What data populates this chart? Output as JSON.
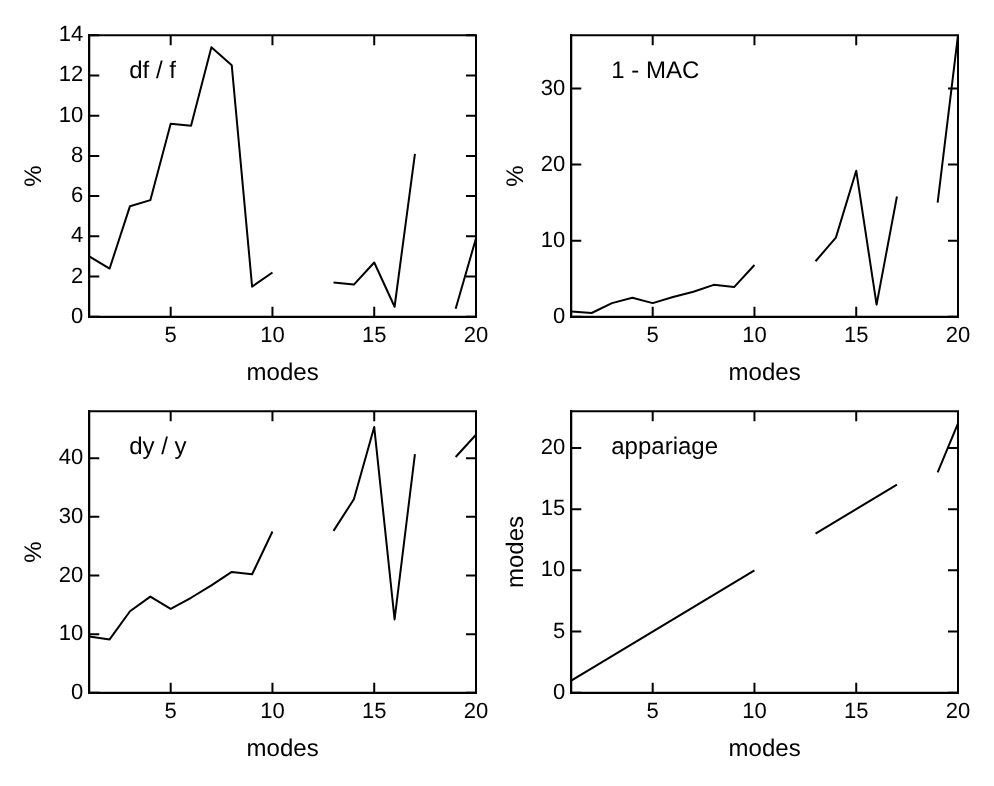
{
  "chart_data": [
    {
      "type": "line",
      "annotations": [
        "df / f"
      ],
      "xlabel": "modes",
      "ylabel": "%",
      "x": [
        1,
        2,
        3,
        4,
        5,
        6,
        7,
        8,
        9,
        10,
        11,
        12,
        13,
        14,
        15,
        16,
        17,
        18,
        19,
        20
      ],
      "series": [
        {
          "color": "#000000",
          "values": [
            3.0,
            2.4,
            5.5,
            5.8,
            9.6,
            9.5,
            13.4,
            12.5,
            1.5,
            2.2,
            null,
            null,
            1.7,
            1.6,
            2.7,
            0.5,
            8.1,
            null,
            0.4,
            3.9
          ]
        }
      ],
      "xlim": [
        1,
        20
      ],
      "xticks": [
        5,
        10,
        15,
        20
      ],
      "ylim": [
        0,
        14
      ],
      "yticks": [
        0,
        2,
        4,
        6,
        8,
        10,
        12,
        14
      ],
      "grid": false,
      "legend": false,
      "marker": "none",
      "line_style": "solid"
    },
    {
      "type": "line",
      "annotations": [
        "1 - MAC"
      ],
      "xlabel": "modes",
      "ylabel": "%",
      "x": [
        1,
        2,
        3,
        4,
        5,
        6,
        7,
        8,
        9,
        10,
        11,
        12,
        13,
        14,
        15,
        16,
        17,
        18,
        19,
        20
      ],
      "series": [
        {
          "color": "#000000",
          "values": [
            0.7,
            0.5,
            1.8,
            2.5,
            1.8,
            2.6,
            3.3,
            4.2,
            3.9,
            6.8,
            null,
            null,
            7.3,
            10.4,
            19.2,
            1.6,
            15.8,
            null,
            15,
            37
          ]
        }
      ],
      "xlim": [
        1,
        20
      ],
      "xticks": [
        5,
        10,
        15,
        20
      ],
      "ylim": [
        0,
        37
      ],
      "yticks": [
        0,
        10,
        20,
        30
      ],
      "grid": false,
      "legend": false,
      "marker": "none",
      "line_style": "solid"
    },
    {
      "type": "line",
      "annotations": [
        "dy / y"
      ],
      "xlabel": "modes",
      "ylabel": "%",
      "x": [
        1,
        2,
        3,
        4,
        5,
        6,
        7,
        8,
        9,
        10,
        11,
        12,
        13,
        14,
        15,
        16,
        17,
        18,
        19,
        20
      ],
      "series": [
        {
          "color": "#000000",
          "values": [
            9.6,
            9.1,
            13.9,
            16.4,
            14.3,
            16.2,
            18.3,
            20.6,
            20.2,
            27.5,
            null,
            null,
            27.6,
            33,
            45.3,
            12.5,
            40.7,
            null,
            40.2,
            44
          ]
        }
      ],
      "xlim": [
        1,
        20
      ],
      "xticks": [
        5,
        10,
        15,
        20
      ],
      "ylim": [
        0,
        48
      ],
      "yticks": [
        0,
        10,
        20,
        30,
        40
      ],
      "grid": false,
      "legend": false,
      "marker": "none",
      "line_style": "solid"
    },
    {
      "type": "line",
      "annotations": [
        "appariage"
      ],
      "xlabel": "modes",
      "ylabel": "modes",
      "x": [
        1,
        2,
        3,
        4,
        5,
        6,
        7,
        8,
        9,
        10,
        11,
        12,
        13,
        14,
        15,
        16,
        17,
        18,
        19,
        20
      ],
      "series": [
        {
          "color": "#000000",
          "values": [
            1,
            2,
            3,
            4,
            5,
            6,
            7,
            8,
            9,
            10,
            null,
            null,
            13,
            14,
            15,
            16,
            17,
            null,
            18,
            22
          ]
        }
      ],
      "xlim": [
        1,
        20
      ],
      "xticks": [
        5,
        10,
        15,
        20
      ],
      "ylim": [
        0,
        23
      ],
      "yticks": [
        0,
        5,
        10,
        15,
        20
      ],
      "grid": false,
      "legend": false,
      "marker": "none",
      "line_style": "solid"
    }
  ]
}
